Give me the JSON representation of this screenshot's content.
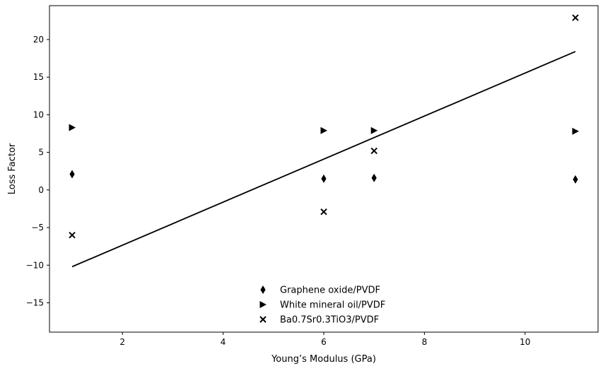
{
  "chart_data": {
    "type": "scatter",
    "title": "",
    "xlabel": "Young’s Modulus (GPa)",
    "ylabel": "Loss Factor",
    "xlim": [
      0.55,
      11.45
    ],
    "ylim": [
      -18.9,
      24.5
    ],
    "xticks": [
      2,
      4,
      6,
      8,
      10
    ],
    "yticks": [
      -15,
      -10,
      -5,
      0,
      5,
      10,
      15,
      20
    ],
    "grid": false,
    "legend_position": "lower-center",
    "series": [
      {
        "name": "Graphene oxide/PVDF",
        "marker": "thin-diamond",
        "color": "#000000",
        "points": [
          {
            "x": 1,
            "y": 2.1
          },
          {
            "x": 6,
            "y": 1.5
          },
          {
            "x": 7,
            "y": 1.6
          },
          {
            "x": 11,
            "y": 1.4
          }
        ]
      },
      {
        "name": "White mineral oil/PVDF",
        "marker": "triangle-right",
        "color": "#000000",
        "points": [
          {
            "x": 1,
            "y": 8.3
          },
          {
            "x": 6,
            "y": 7.9
          },
          {
            "x": 7,
            "y": 7.9
          },
          {
            "x": 11,
            "y": 7.8
          }
        ]
      },
      {
        "name": "Ba0.7Sr0.3TiO3/PVDF",
        "marker": "x",
        "color": "#000000",
        "points": [
          {
            "x": 1,
            "y": -6.0
          },
          {
            "x": 6,
            "y": -2.9
          },
          {
            "x": 7,
            "y": 5.2
          },
          {
            "x": 11,
            "y": 22.9
          }
        ]
      }
    ],
    "trend_line": {
      "x": [
        1,
        11
      ],
      "y": [
        -10.2,
        18.4
      ],
      "color": "#000000"
    }
  }
}
